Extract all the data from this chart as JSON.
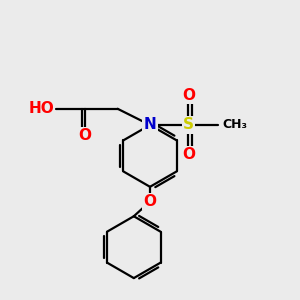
{
  "bg_color": "#ebebeb",
  "bond_color": "#000000",
  "bond_width": 1.6,
  "atom_colors": {
    "O": "#ff0000",
    "N": "#0000cc",
    "S": "#cccc00",
    "C": "#000000",
    "H": "#607070"
  },
  "font_size_atoms": 11,
  "font_size_methyl": 9
}
